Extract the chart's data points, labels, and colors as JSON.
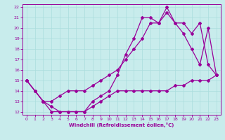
{
  "xlabel": "Windchill (Refroidissement éolien,°C)",
  "bg_color": "#c8ecec",
  "line_color": "#990099",
  "grid_color": "#aadddd",
  "xlim": [
    -0.5,
    23.5
  ],
  "ylim": [
    11.7,
    22.3
  ],
  "xticks": [
    0,
    1,
    2,
    3,
    4,
    5,
    6,
    7,
    8,
    9,
    10,
    11,
    12,
    13,
    14,
    15,
    16,
    17,
    18,
    19,
    20,
    21,
    22,
    23
  ],
  "yticks": [
    12,
    13,
    14,
    15,
    16,
    17,
    18,
    19,
    20,
    21,
    22
  ],
  "line1_x": [
    0,
    1,
    2,
    3,
    4,
    5,
    6,
    7,
    8,
    9,
    10,
    11,
    12,
    13,
    14,
    15,
    16,
    17,
    18,
    19,
    20,
    21,
    22,
    23
  ],
  "line1_y": [
    15,
    14,
    13,
    12,
    12,
    12,
    12,
    12,
    13,
    13.5,
    14,
    15.5,
    17.5,
    19,
    21,
    21,
    20.5,
    22,
    20.5,
    19.5,
    18,
    16.5,
    20,
    15.5
  ],
  "line2_x": [
    0,
    1,
    2,
    3,
    4,
    5,
    6,
    7,
    8,
    9,
    10,
    11,
    12,
    13,
    14,
    15,
    16,
    17,
    18,
    19,
    20,
    21,
    22,
    23
  ],
  "line2_y": [
    15,
    14,
    13,
    12.5,
    12,
    12,
    12,
    12,
    12.5,
    13,
    13.5,
    14,
    14,
    14,
    14,
    14,
    14,
    14,
    14.5,
    14.5,
    15,
    15,
    15,
    15.5
  ],
  "line3_x": [
    0,
    1,
    2,
    3,
    4,
    5,
    6,
    7,
    8,
    9,
    10,
    11,
    12,
    13,
    14,
    15,
    16,
    17,
    18,
    19,
    20,
    21,
    22,
    23
  ],
  "line3_y": [
    15,
    14,
    13,
    13,
    13.5,
    14,
    14,
    14,
    14.5,
    15,
    15.5,
    16,
    17,
    18,
    19,
    20.5,
    20.5,
    21.5,
    20.5,
    20.5,
    19.5,
    20.5,
    16.5,
    15.5
  ]
}
